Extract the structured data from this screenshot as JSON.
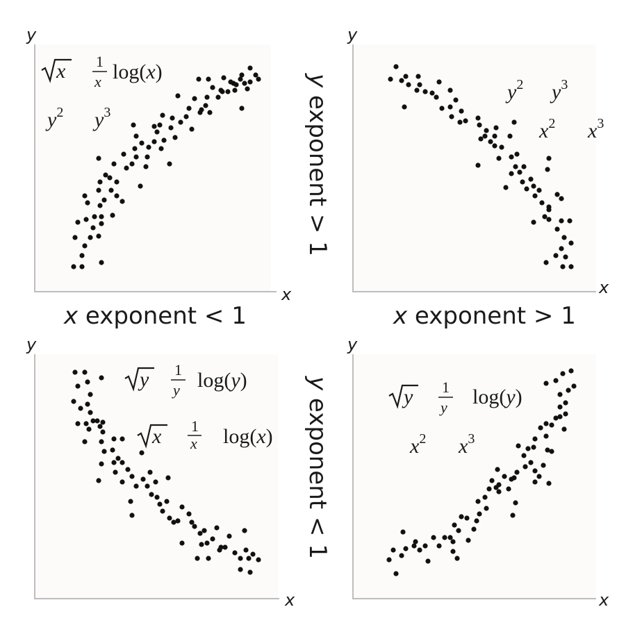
{
  "axes": {
    "x_var": "x",
    "y_var": "y"
  },
  "captions": {
    "x_exp_lt": {
      "var": "x",
      "rest": " exponent < 1"
    },
    "x_exp_gt": {
      "var": "x",
      "rest": " exponent > 1"
    },
    "y_exp_gt": {
      "var": "y",
      "rest": " exponent > 1"
    },
    "y_exp_lt": {
      "var": "y",
      "rest": " exponent < 1"
    }
  },
  "symbols": {
    "x": "x",
    "y": "y",
    "one": "1",
    "log_x": "log(x)",
    "log_y": "log(y)",
    "log_open": "log(",
    "close": ")",
    "sq": "2",
    "cube": "3"
  },
  "chart_data": [
    {
      "type": "scatter",
      "panel": "top-left",
      "trend": "increasing, concave down",
      "xlabel": "x",
      "ylabel": "y",
      "annotations": [
        "√x",
        "1/x",
        "log(x)",
        "y^2",
        "y^3"
      ]
    },
    {
      "type": "scatter",
      "panel": "top-right",
      "trend": "decreasing, concave down",
      "xlabel": "x",
      "ylabel": "y",
      "annotations": [
        "y^2",
        "y^3",
        "x^2",
        "x^3"
      ]
    },
    {
      "type": "scatter",
      "panel": "bottom-left",
      "trend": "decreasing, concave up",
      "xlabel": "x",
      "ylabel": "y",
      "annotations": [
        "√y",
        "1/y",
        "log(y)",
        "√x",
        "1/x",
        "log(x)"
      ]
    },
    {
      "type": "scatter",
      "panel": "bottom-right",
      "trend": "increasing, concave up",
      "xlabel": "x",
      "ylabel": "y",
      "annotations": [
        "√y",
        "1/y",
        "log(y)",
        "x^2",
        "x^3"
      ]
    }
  ]
}
